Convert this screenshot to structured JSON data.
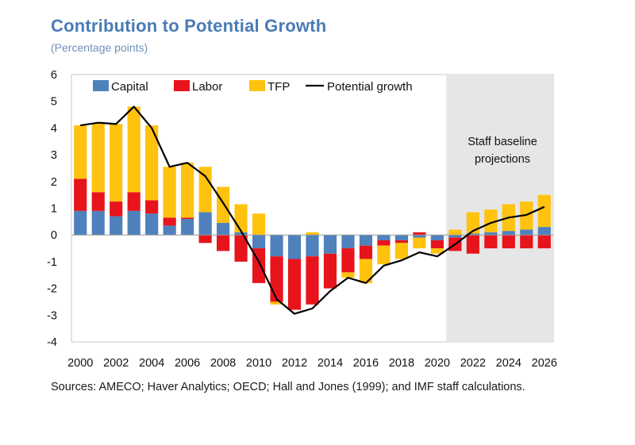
{
  "header": {
    "title": "Contribution to Potential Growth",
    "subtitle": "(Percentage points)"
  },
  "footer": {
    "sources": "Sources: AMECO; Haver Analytics; OECD; Hall and Jones (1999); and IMF staff calculations."
  },
  "colors": {
    "capital": "#4f81bd",
    "labor": "#e8141b",
    "tfp": "#ffc20e",
    "line": "#000000",
    "projection_shade": "#e6e6e6"
  },
  "chart_data": {
    "type": "bar",
    "stacked": true,
    "title": "Contribution to Potential Growth",
    "subtitle": "(Percentage points)",
    "ylim": [
      -4,
      6
    ],
    "yticks": [
      6,
      5,
      4,
      3,
      2,
      1,
      0,
      -1,
      -2,
      -3,
      -4
    ],
    "categories": [
      "2000",
      "2001",
      "2002",
      "2003",
      "2004",
      "2005",
      "2006",
      "2007",
      "2008",
      "2009",
      "2010",
      "2011",
      "2012",
      "2013",
      "2014",
      "2015",
      "2016",
      "2017",
      "2018",
      "2019",
      "2020",
      "2021",
      "2022",
      "2023",
      "2024",
      "2025",
      "2026"
    ],
    "xtick_labels": [
      "2000",
      "2002",
      "2004",
      "2006",
      "2008",
      "2010",
      "2012",
      "2014",
      "2016",
      "2018",
      "2020",
      "2022",
      "2024",
      "2026"
    ],
    "series": [
      {
        "name": "Capital",
        "key": "capital",
        "values": [
          0.9,
          0.9,
          0.7,
          0.9,
          0.8,
          0.35,
          0.6,
          0.85,
          0.45,
          0.1,
          -0.5,
          -0.8,
          -0.9,
          -0.8,
          -0.7,
          -0.5,
          -0.4,
          -0.2,
          -0.2,
          -0.1,
          -0.2,
          -0.1,
          0.05,
          0.1,
          0.15,
          0.2,
          0.3
        ]
      },
      {
        "name": "Labor",
        "key": "labor",
        "values": [
          1.2,
          0.7,
          0.55,
          0.7,
          0.5,
          0.3,
          0.05,
          -0.3,
          -0.6,
          -1.0,
          -1.3,
          -1.7,
          -1.9,
          -1.8,
          -1.3,
          -0.9,
          -0.5,
          -0.2,
          -0.1,
          0.1,
          -0.3,
          -0.5,
          -0.7,
          -0.5,
          -0.5,
          -0.5,
          -0.5
        ]
      },
      {
        "name": "TFP",
        "key": "tfp",
        "values": [
          2.0,
          2.6,
          2.9,
          3.2,
          2.8,
          1.9,
          2.05,
          1.7,
          1.35,
          1.05,
          0.8,
          -0.1,
          0.0,
          0.1,
          0.0,
          -0.2,
          -0.9,
          -0.7,
          -0.6,
          -0.4,
          -0.2,
          0.2,
          0.8,
          0.85,
          1.0,
          1.05,
          1.2
        ]
      }
    ],
    "line": {
      "name": "Potential growth",
      "values": [
        4.1,
        4.2,
        4.15,
        4.8,
        4.0,
        2.55,
        2.7,
        2.2,
        1.2,
        0.15,
        -1.0,
        -2.4,
        -2.95,
        -2.75,
        -2.1,
        -1.6,
        -1.8,
        -1.15,
        -0.95,
        -0.65,
        -0.8,
        -0.35,
        0.15,
        0.45,
        0.65,
        0.75,
        1.05
      ]
    },
    "legend": {
      "position": "top",
      "labels": [
        "Capital",
        "Labor",
        "TFP",
        "Potential growth"
      ]
    },
    "projection": {
      "label_line1": "Staff baseline",
      "label_line2": "projections",
      "start": "2021",
      "end": "2026"
    }
  }
}
